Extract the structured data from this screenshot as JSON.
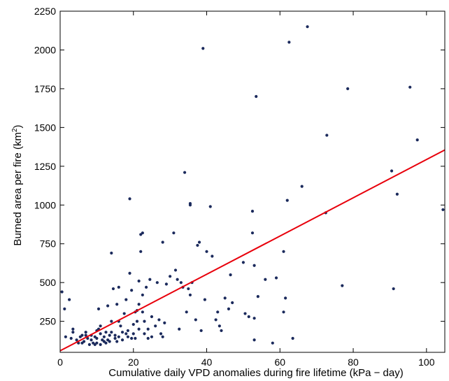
{
  "chart_data": {
    "type": "scatter",
    "xlabel": "Cumulative daily VPD anomalies during fire lifetime (kPa − day)",
    "ylabel_main": "Burned area per fire (km",
    "ylabel_sup": "2",
    "ylabel_close": ")",
    "xlim": [
      0,
      105
    ],
    "ylim": [
      50,
      2250
    ],
    "xticks": [
      0,
      20,
      40,
      60,
      80,
      100
    ],
    "yticks": [
      250,
      500,
      750,
      1000,
      1250,
      1500,
      1750,
      2000,
      2250
    ],
    "grid": false,
    "colors": {
      "points": "#1b2a5c",
      "fit_line": "#e8000b",
      "axes": "#000000"
    },
    "fit_line": {
      "x": [
        0,
        105
      ],
      "y": [
        60,
        1355
      ]
    },
    "points": [
      [
        0.5,
        440
      ],
      [
        1.2,
        330
      ],
      [
        1.5,
        150
      ],
      [
        2.5,
        390
      ],
      [
        3.0,
        140
      ],
      [
        3.5,
        200
      ],
      [
        3.5,
        180
      ],
      [
        4.5,
        130
      ],
      [
        5.0,
        110
      ],
      [
        5.5,
        150
      ],
      [
        6.0,
        160
      ],
      [
        6.0,
        110
      ],
      [
        6.5,
        120
      ],
      [
        7.0,
        180
      ],
      [
        7.0,
        160
      ],
      [
        7.5,
        140
      ],
      [
        8.0,
        100
      ],
      [
        8.5,
        160
      ],
      [
        8.5,
        130
      ],
      [
        9.0,
        110
      ],
      [
        9.5,
        150
      ],
      [
        9.5,
        100
      ],
      [
        10.0,
        190
      ],
      [
        10.0,
        140
      ],
      [
        10.0,
        110
      ],
      [
        10.5,
        200
      ],
      [
        10.5,
        330
      ],
      [
        11.0,
        220
      ],
      [
        11.0,
        170
      ],
      [
        11.0,
        100
      ],
      [
        11.5,
        130
      ],
      [
        12.0,
        150
      ],
      [
        12.0,
        120
      ],
      [
        12.5,
        180
      ],
      [
        12.5,
        110
      ],
      [
        13.0,
        130
      ],
      [
        13.0,
        350
      ],
      [
        13.5,
        160
      ],
      [
        13.5,
        120
      ],
      [
        14.0,
        690
      ],
      [
        14.0,
        250
      ],
      [
        14.0,
        180
      ],
      [
        14.5,
        460
      ],
      [
        15.0,
        160
      ],
      [
        15.0,
        140
      ],
      [
        15.5,
        360
      ],
      [
        15.5,
        120
      ],
      [
        16.0,
        470
      ],
      [
        16.0,
        250
      ],
      [
        16.0,
        150
      ],
      [
        16.5,
        220
      ],
      [
        17.0,
        180
      ],
      [
        17.0,
        130
      ],
      [
        17.5,
        300
      ],
      [
        18.0,
        390
      ],
      [
        18.0,
        170
      ],
      [
        18.5,
        190
      ],
      [
        18.5,
        150
      ],
      [
        19.0,
        1040
      ],
      [
        19.0,
        560
      ],
      [
        19.5,
        450
      ],
      [
        19.5,
        140
      ],
      [
        20.0,
        230
      ],
      [
        20.0,
        170
      ],
      [
        20.5,
        310
      ],
      [
        20.5,
        140
      ],
      [
        21.0,
        320
      ],
      [
        21.0,
        250
      ],
      [
        21.5,
        510
      ],
      [
        21.5,
        360
      ],
      [
        21.5,
        200
      ],
      [
        22.0,
        810
      ],
      [
        22.0,
        700
      ],
      [
        22.5,
        820
      ],
      [
        22.5,
        420
      ],
      [
        22.5,
        310
      ],
      [
        23.0,
        250
      ],
      [
        23.0,
        170
      ],
      [
        23.5,
        470
      ],
      [
        24.0,
        200
      ],
      [
        24.0,
        140
      ],
      [
        24.5,
        520
      ],
      [
        25.0,
        280
      ],
      [
        25.0,
        150
      ],
      [
        26.0,
        220
      ],
      [
        26.5,
        500
      ],
      [
        27.0,
        260
      ],
      [
        27.5,
        170
      ],
      [
        28.0,
        760
      ],
      [
        28.0,
        150
      ],
      [
        28.5,
        240
      ],
      [
        29.0,
        490
      ],
      [
        30.0,
        540
      ],
      [
        31.0,
        820
      ],
      [
        31.5,
        580
      ],
      [
        32.0,
        520
      ],
      [
        32.5,
        200
      ],
      [
        33.0,
        500
      ],
      [
        33.5,
        470
      ],
      [
        34.0,
        1210
      ],
      [
        34.5,
        310
      ],
      [
        35.0,
        460
      ],
      [
        35.5,
        1010
      ],
      [
        35.5,
        420
      ],
      [
        35.5,
        1000
      ],
      [
        36.0,
        500
      ],
      [
        37.0,
        260
      ],
      [
        37.5,
        740
      ],
      [
        38.0,
        760
      ],
      [
        38.5,
        190
      ],
      [
        39.0,
        2010
      ],
      [
        39.5,
        390
      ],
      [
        40.0,
        700
      ],
      [
        41.0,
        990
      ],
      [
        41.5,
        670
      ],
      [
        42.5,
        260
      ],
      [
        43.0,
        310
      ],
      [
        43.5,
        220
      ],
      [
        44.0,
        190
      ],
      [
        45.0,
        400
      ],
      [
        46.0,
        330
      ],
      [
        46.5,
        550
      ],
      [
        47.0,
        370
      ],
      [
        50.0,
        630
      ],
      [
        50.5,
        300
      ],
      [
        51.5,
        280
      ],
      [
        52.5,
        960
      ],
      [
        52.5,
        820
      ],
      [
        53.0,
        610
      ],
      [
        53.0,
        270
      ],
      [
        53.0,
        130
      ],
      [
        53.5,
        1700
      ],
      [
        54.0,
        410
      ],
      [
        56.0,
        520
      ],
      [
        58.0,
        110
      ],
      [
        59.0,
        530
      ],
      [
        61.0,
        700
      ],
      [
        61.0,
        310
      ],
      [
        61.5,
        400
      ],
      [
        62.0,
        1030
      ],
      [
        62.5,
        2050
      ],
      [
        63.5,
        140
      ],
      [
        66.0,
        1120
      ],
      [
        67.5,
        2150
      ],
      [
        72.5,
        950
      ],
      [
        72.8,
        1450
      ],
      [
        77.0,
        480
      ],
      [
        78.5,
        1750
      ],
      [
        90.5,
        1220
      ],
      [
        91.0,
        460
      ],
      [
        92.0,
        1070
      ],
      [
        95.5,
        1760
      ],
      [
        97.5,
        1420
      ],
      [
        104.5,
        970
      ]
    ]
  }
}
